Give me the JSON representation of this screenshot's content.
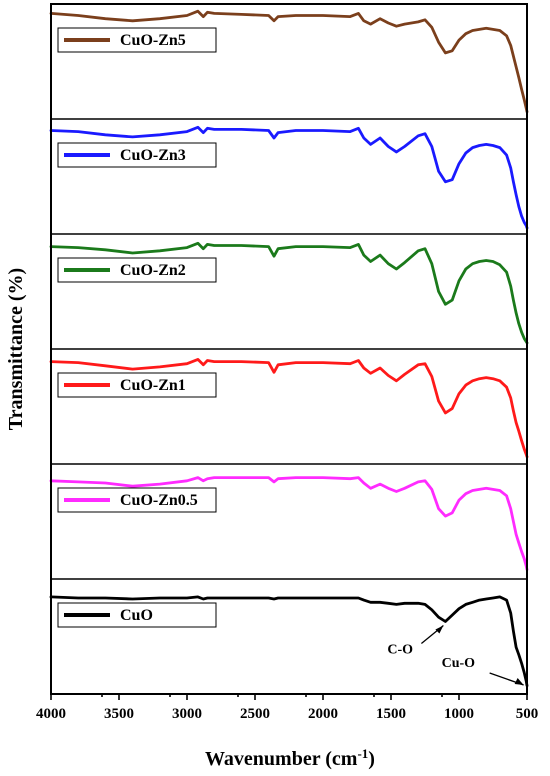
{
  "chart_data": {
    "type": "line",
    "xlabel": "Wavenumber (cm",
    "xlabel_sup": "-1",
    "xlabel_close": ")",
    "ylabel": "Transmittance (%)",
    "xlim": [
      4000,
      500
    ],
    "x_reversed": true,
    "x_ticks": [
      4000,
      3500,
      3000,
      2500,
      2000,
      1500,
      1000,
      500
    ],
    "y_ticks_shown": false,
    "grid": false,
    "layout": "stacked-panels",
    "legend_position": "top-left of each panel",
    "series": [
      {
        "name": "CuO-Zn5",
        "color": "#7b3f1c",
        "x": [
          4000,
          3800,
          3600,
          3400,
          3200,
          3000,
          2920,
          2880,
          2850,
          2800,
          2600,
          2400,
          2360,
          2330,
          2200,
          2000,
          1800,
          1740,
          1700,
          1650,
          1580,
          1520,
          1460,
          1400,
          1300,
          1250,
          1200,
          1150,
          1100,
          1050,
          1000,
          950,
          900,
          850,
          800,
          750,
          700,
          650,
          620,
          600,
          580,
          560,
          540,
          520,
          505,
          500
        ],
        "y": [
          0.95,
          0.93,
          0.9,
          0.88,
          0.9,
          0.93,
          0.97,
          0.92,
          0.96,
          0.95,
          0.94,
          0.93,
          0.88,
          0.92,
          0.93,
          0.93,
          0.92,
          0.95,
          0.88,
          0.85,
          0.9,
          0.86,
          0.83,
          0.85,
          0.87,
          0.89,
          0.82,
          0.68,
          0.58,
          0.6,
          0.7,
          0.76,
          0.79,
          0.8,
          0.81,
          0.8,
          0.79,
          0.74,
          0.65,
          0.55,
          0.45,
          0.35,
          0.24,
          0.14,
          0.06,
          0.03
        ]
      },
      {
        "name": "CuO-Zn3",
        "color": "#1a1aff",
        "x": [
          4000,
          3800,
          3600,
          3400,
          3200,
          3000,
          2920,
          2880,
          2850,
          2800,
          2600,
          2400,
          2360,
          2330,
          2200,
          2000,
          1800,
          1740,
          1700,
          1650,
          1580,
          1520,
          1460,
          1400,
          1300,
          1250,
          1200,
          1150,
          1100,
          1050,
          1000,
          950,
          900,
          850,
          800,
          750,
          700,
          650,
          620,
          600,
          580,
          560,
          540,
          520,
          505,
          500
        ],
        "y": [
          0.93,
          0.92,
          0.89,
          0.87,
          0.89,
          0.92,
          0.96,
          0.91,
          0.95,
          0.94,
          0.94,
          0.93,
          0.86,
          0.91,
          0.93,
          0.93,
          0.92,
          0.95,
          0.86,
          0.8,
          0.86,
          0.78,
          0.73,
          0.78,
          0.88,
          0.9,
          0.78,
          0.55,
          0.45,
          0.47,
          0.62,
          0.72,
          0.77,
          0.79,
          0.8,
          0.79,
          0.77,
          0.7,
          0.58,
          0.45,
          0.33,
          0.22,
          0.13,
          0.07,
          0.04,
          0.02
        ]
      },
      {
        "name": "CuO-Zn2",
        "color": "#1b7a1b",
        "x": [
          4000,
          3800,
          3600,
          3400,
          3200,
          3000,
          2920,
          2880,
          2850,
          2800,
          2600,
          2400,
          2360,
          2330,
          2200,
          2000,
          1800,
          1740,
          1700,
          1650,
          1580,
          1520,
          1460,
          1400,
          1300,
          1250,
          1200,
          1150,
          1100,
          1050,
          1000,
          950,
          900,
          850,
          800,
          750,
          700,
          650,
          620,
          600,
          580,
          560,
          540,
          520,
          505,
          500
        ],
        "y": [
          0.92,
          0.91,
          0.89,
          0.86,
          0.88,
          0.91,
          0.95,
          0.9,
          0.94,
          0.93,
          0.93,
          0.92,
          0.83,
          0.9,
          0.92,
          0.92,
          0.91,
          0.94,
          0.84,
          0.78,
          0.84,
          0.76,
          0.71,
          0.77,
          0.88,
          0.9,
          0.76,
          0.5,
          0.38,
          0.42,
          0.6,
          0.71,
          0.76,
          0.78,
          0.79,
          0.78,
          0.75,
          0.68,
          0.55,
          0.42,
          0.3,
          0.2,
          0.12,
          0.06,
          0.03,
          0.02
        ]
      },
      {
        "name": "CuO-Zn1",
        "color": "#ff1a1a",
        "x": [
          4000,
          3800,
          3600,
          3400,
          3200,
          3000,
          2920,
          2880,
          2850,
          2800,
          2600,
          2400,
          2360,
          2330,
          2200,
          2000,
          1800,
          1740,
          1700,
          1650,
          1580,
          1520,
          1460,
          1400,
          1300,
          1250,
          1200,
          1150,
          1100,
          1050,
          1000,
          950,
          900,
          850,
          800,
          750,
          700,
          650,
          620,
          600,
          580,
          560,
          540,
          520,
          505,
          500
        ],
        "y": [
          0.92,
          0.91,
          0.88,
          0.85,
          0.87,
          0.9,
          0.94,
          0.89,
          0.93,
          0.92,
          0.92,
          0.91,
          0.82,
          0.89,
          0.91,
          0.91,
          0.9,
          0.93,
          0.86,
          0.81,
          0.86,
          0.79,
          0.74,
          0.8,
          0.89,
          0.9,
          0.78,
          0.55,
          0.44,
          0.48,
          0.62,
          0.7,
          0.74,
          0.76,
          0.77,
          0.76,
          0.74,
          0.68,
          0.58,
          0.46,
          0.35,
          0.27,
          0.18,
          0.1,
          0.05,
          0.03
        ]
      },
      {
        "name": "CuO-Zn0.5",
        "color": "#ff2bff",
        "x": [
          4000,
          3800,
          3600,
          3400,
          3200,
          3000,
          2920,
          2880,
          2850,
          2800,
          2600,
          2400,
          2360,
          2330,
          2200,
          2000,
          1800,
          1740,
          1700,
          1650,
          1580,
          1520,
          1460,
          1400,
          1300,
          1250,
          1200,
          1150,
          1100,
          1050,
          1000,
          950,
          900,
          850,
          800,
          750,
          700,
          650,
          620,
          600,
          580,
          560,
          540,
          520,
          505,
          500
        ],
        "y": [
          0.88,
          0.87,
          0.86,
          0.83,
          0.85,
          0.88,
          0.91,
          0.88,
          0.9,
          0.91,
          0.91,
          0.91,
          0.87,
          0.9,
          0.91,
          0.91,
          0.9,
          0.91,
          0.86,
          0.81,
          0.85,
          0.81,
          0.78,
          0.81,
          0.87,
          0.88,
          0.8,
          0.62,
          0.55,
          0.58,
          0.7,
          0.76,
          0.79,
          0.8,
          0.81,
          0.8,
          0.79,
          0.74,
          0.62,
          0.5,
          0.38,
          0.3,
          0.22,
          0.15,
          0.08,
          0.05
        ]
      },
      {
        "name": "CuO",
        "color": "#000000",
        "x": [
          4000,
          3800,
          3600,
          3400,
          3200,
          3000,
          2920,
          2880,
          2850,
          2800,
          2600,
          2400,
          2360,
          2330,
          2200,
          2000,
          1800,
          1740,
          1700,
          1650,
          1580,
          1520,
          1460,
          1400,
          1300,
          1250,
          1200,
          1150,
          1100,
          1050,
          1000,
          950,
          900,
          850,
          800,
          750,
          700,
          650,
          620,
          600,
          580,
          560,
          540,
          520,
          505,
          500
        ],
        "y": [
          0.87,
          0.86,
          0.86,
          0.85,
          0.86,
          0.86,
          0.87,
          0.85,
          0.86,
          0.86,
          0.86,
          0.86,
          0.85,
          0.86,
          0.86,
          0.86,
          0.86,
          0.86,
          0.84,
          0.82,
          0.82,
          0.81,
          0.8,
          0.81,
          0.81,
          0.8,
          0.75,
          0.68,
          0.64,
          0.7,
          0.76,
          0.8,
          0.82,
          0.84,
          0.85,
          0.86,
          0.87,
          0.84,
          0.72,
          0.55,
          0.4,
          0.33,
          0.25,
          0.16,
          0.08,
          0.04
        ]
      }
    ],
    "annotations": [
      {
        "text": "C-O",
        "x": 1100
      },
      {
        "text": "Cu-O",
        "x": 510
      }
    ]
  }
}
